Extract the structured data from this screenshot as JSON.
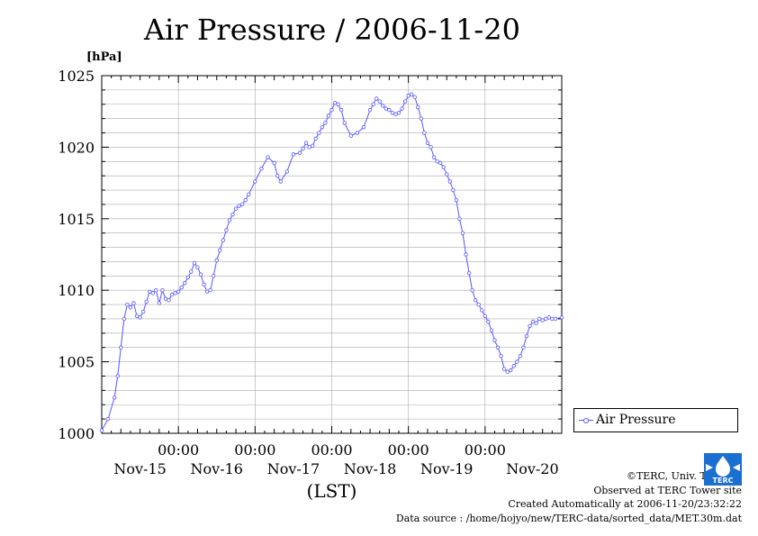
{
  "page": {
    "title": "Air Pressure / 2006-11-20",
    "unit_label": "[hPa]",
    "footer": {
      "copyright": "©TERC, Univ. Tsukuba",
      "observed": "Observed at TERC Tower site",
      "created": "Created Automatically at 2006-11-20/23:32:22",
      "source": "Data source : /home/hojyo/new/TERC-data/sorted_data/MET.30m.dat"
    },
    "logo_text": "TERC",
    "colors": {
      "series": "#5555ff",
      "grid": "#aaaaaa",
      "logo": "#1a6fd0"
    }
  },
  "chart_data": {
    "type": "line",
    "title": "Air Pressure / 2006-11-20",
    "ylabel": "[hPa]",
    "xlabel": "(LST)",
    "ylim": [
      1000,
      1025
    ],
    "yticks": [
      1000,
      1005,
      1010,
      1015,
      1020,
      1025
    ],
    "ytick_labels": [
      "1000",
      "1005",
      "1010",
      "1015",
      "1020",
      "1025"
    ],
    "xlim_hours": [
      0,
      144
    ],
    "xticks": [
      {
        "hour": 24,
        "time": "00:00",
        "date": "Nov-15"
      },
      {
        "hour": 48,
        "time": "00:00",
        "date": "Nov-16"
      },
      {
        "hour": 72,
        "time": "00:00",
        "date": "Nov-17"
      },
      {
        "hour": 96,
        "time": "00:00",
        "date": "Nov-18"
      },
      {
        "hour": 120,
        "time": "00:00",
        "date": "Nov-19"
      }
    ],
    "xtick_extra_date": {
      "hour": 132,
      "date": "Nov-20"
    },
    "grid": true,
    "legend_position": "right",
    "series": [
      {
        "name": "Air Pressure",
        "color": "#5555ff",
        "x_hours": [
          0,
          2,
          4,
          5,
          6,
          7,
          8,
          9,
          10,
          11,
          12,
          13,
          14,
          15,
          16,
          17,
          18,
          19,
          20,
          21,
          22,
          23,
          24,
          25,
          26,
          27,
          28,
          29,
          30,
          31,
          32,
          33,
          34,
          35,
          36,
          37,
          38,
          39,
          40,
          41,
          42,
          43,
          44,
          45,
          46,
          48,
          50,
          52,
          54,
          55,
          56,
          58,
          60,
          62,
          63,
          64,
          65,
          66,
          67,
          68,
          69,
          70,
          71,
          72,
          73,
          74,
          75,
          76,
          78,
          80,
          82,
          84,
          85,
          86,
          87,
          88,
          89,
          90,
          91,
          92,
          93,
          94,
          95,
          96,
          97,
          98,
          99,
          100,
          101,
          102,
          103,
          104,
          105,
          106,
          107,
          108,
          109,
          110,
          111,
          112,
          113,
          114,
          115,
          116,
          117,
          118,
          119,
          120,
          121,
          122,
          123,
          124,
          125,
          126,
          127,
          128,
          129,
          130,
          131,
          132,
          133,
          134,
          135,
          136,
          137,
          138,
          139,
          140,
          141,
          142,
          144
        ],
        "values": [
          1000.2,
          1001.0,
          1002.5,
          1004.0,
          1006.0,
          1008.0,
          1009.0,
          1008.8,
          1009.1,
          1008.2,
          1008.1,
          1008.5,
          1009.2,
          1009.9,
          1009.8,
          1010.0,
          1009.1,
          1010.0,
          1009.4,
          1009.3,
          1009.7,
          1009.8,
          1009.9,
          1010.2,
          1010.5,
          1010.9,
          1011.3,
          1011.9,
          1011.6,
          1011.1,
          1010.4,
          1009.9,
          1010.0,
          1011.0,
          1012.1,
          1012.8,
          1013.5,
          1014.2,
          1014.9,
          1015.3,
          1015.7,
          1015.9,
          1016.0,
          1016.3,
          1016.7,
          1017.6,
          1018.5,
          1019.3,
          1018.9,
          1018.0,
          1017.6,
          1018.3,
          1019.5,
          1019.6,
          1019.9,
          1020.3,
          1020.0,
          1020.1,
          1020.6,
          1021.0,
          1021.4,
          1021.7,
          1022.2,
          1022.6,
          1023.1,
          1023.0,
          1022.6,
          1021.7,
          1020.8,
          1021.0,
          1021.4,
          1022.6,
          1023.0,
          1023.4,
          1023.2,
          1022.9,
          1022.7,
          1022.6,
          1022.4,
          1022.3,
          1022.4,
          1022.7,
          1023.2,
          1023.6,
          1023.7,
          1023.5,
          1022.8,
          1022.0,
          1021.0,
          1020.3,
          1020.0,
          1019.3,
          1019.0,
          1018.9,
          1018.6,
          1018.1,
          1017.6,
          1017.0,
          1016.3,
          1015.0,
          1014.0,
          1012.5,
          1011.2,
          1010.0,
          1009.3,
          1009.0,
          1008.6,
          1008.2,
          1007.8,
          1007.2,
          1006.5,
          1006.0,
          1005.4,
          1004.5,
          1004.3,
          1004.4,
          1004.7,
          1005.0,
          1005.4,
          1006.0,
          1006.8,
          1007.5,
          1007.8,
          1007.7,
          1008.0,
          1007.9,
          1008.0,
          1008.1,
          1008.0,
          1008.0,
          1008.1
        ]
      }
    ]
  }
}
